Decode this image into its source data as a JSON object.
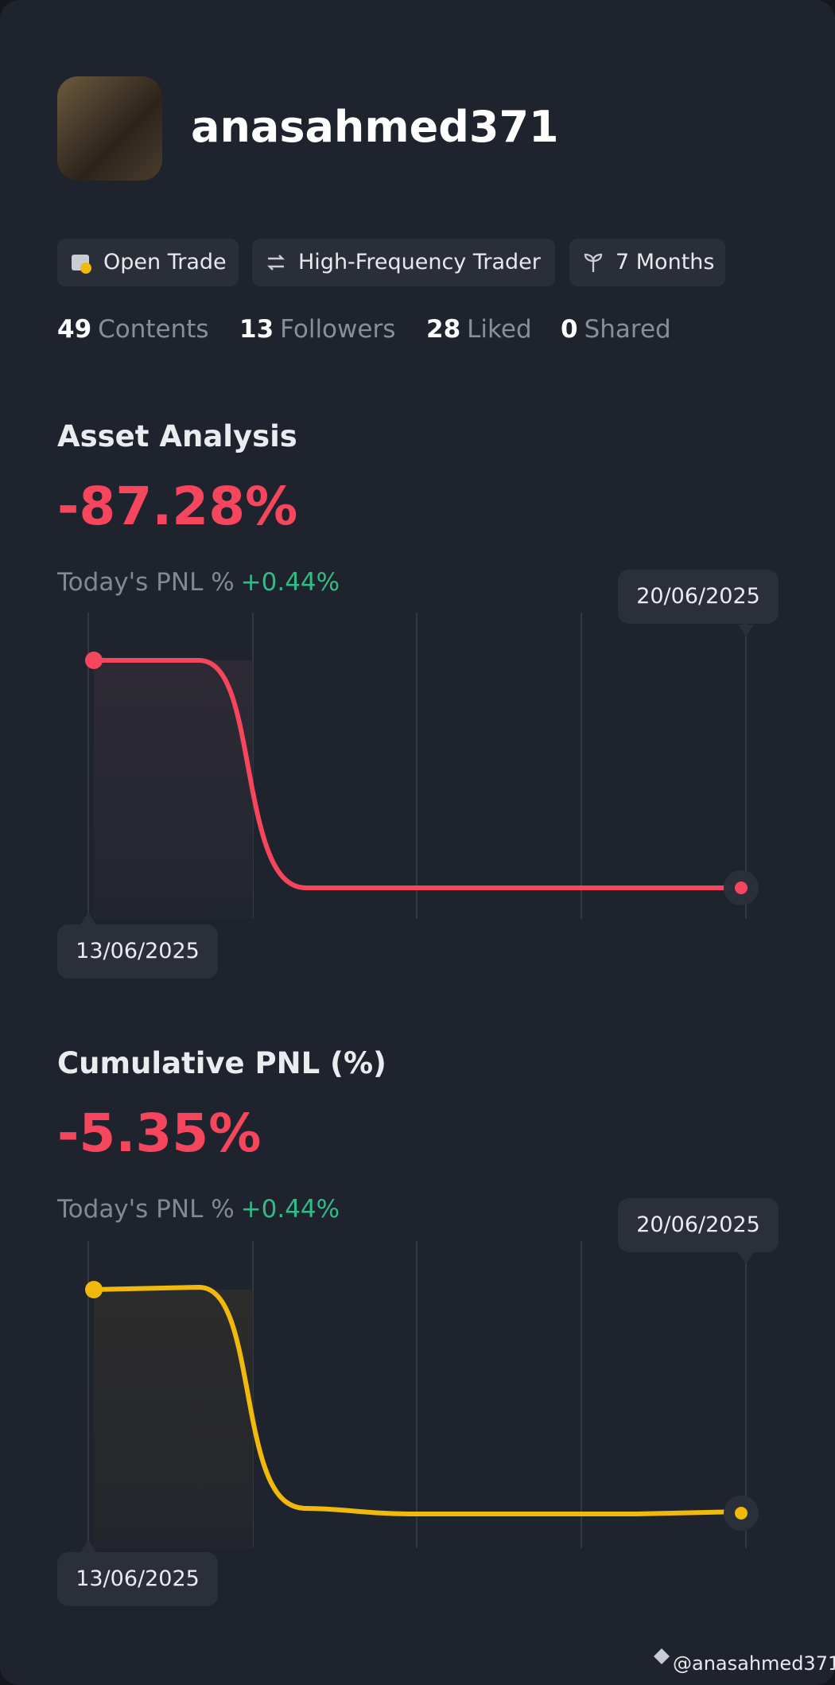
{
  "profile": {
    "username": "anasahmed371",
    "tags": [
      "Open Trade",
      "High-Frequency Trader",
      "7 Months"
    ],
    "stats": [
      {
        "value": "49",
        "label": "Contents"
      },
      {
        "value": "13",
        "label": "Followers"
      },
      {
        "value": "28",
        "label": "Liked"
      },
      {
        "value": "0",
        "label": "Shared"
      }
    ]
  },
  "sections": [
    {
      "title": "Asset Analysis",
      "value": "-87.28%",
      "today_label": "Today's PNL %",
      "today_value": "+0.44%",
      "start_date": "13/06/2025",
      "end_date": "20/06/2025"
    },
    {
      "title": "Cumulative PNL (%)",
      "value": "-5.35%",
      "today_label": "Today's PNL %",
      "today_value": "+0.44%",
      "start_date": "13/06/2025",
      "end_date": "20/06/2025"
    }
  ],
  "watermark": "@anasahmed371"
}
